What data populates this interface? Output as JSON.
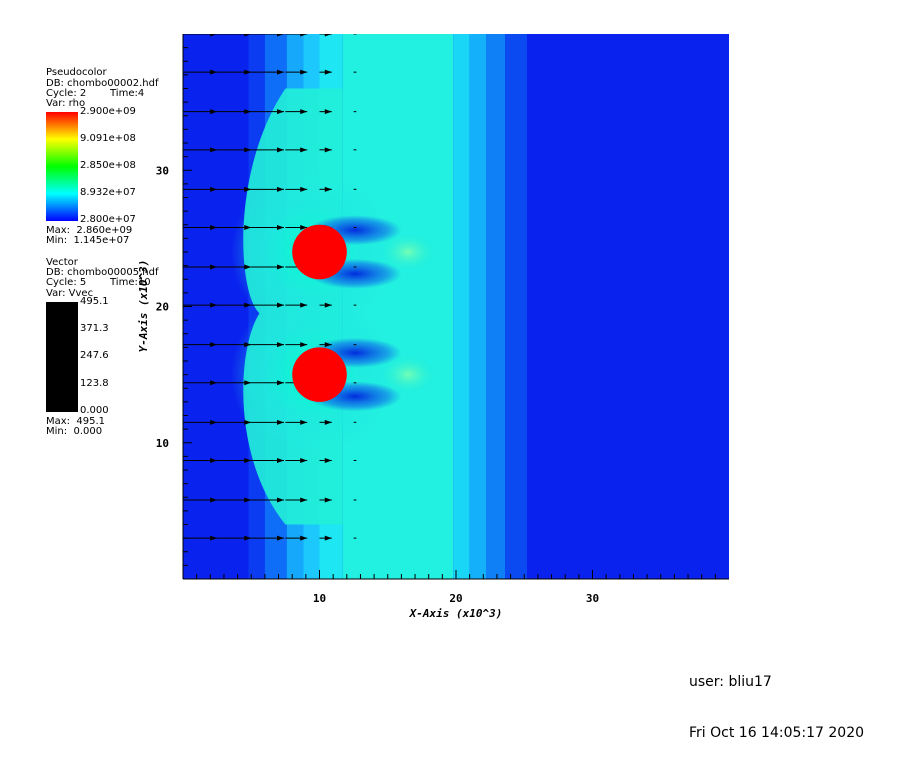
{
  "pseudocolor_legend": {
    "plot_type": "Pseudocolor",
    "db": "DB: chombo00002.hdf",
    "cycle": "Cycle: 2",
    "time": "Time:4",
    "var": "Var: rho",
    "ticks": [
      "2.900e+09",
      "9.091e+08",
      "2.850e+08",
      "8.932e+07",
      "2.800e+07"
    ],
    "max": "Max:  2.860e+09",
    "min": "Min:  1.145e+07",
    "colormap": [
      "#ff0000",
      "#ffff00",
      "#00ff00",
      "#00ffff",
      "#0000ff"
    ]
  },
  "vector_legend": {
    "plot_type": "Vector",
    "db": "DB: chombo00005.hdf",
    "cycle": "Cycle: 5",
    "time": "Time:10",
    "var": "Var: Vvec",
    "ticks": [
      "495.1",
      "371.3",
      "247.6",
      "123.8",
      "0.000"
    ],
    "max": "Max:  495.1",
    "min": "Min:  0.000",
    "bar_color": "#000000"
  },
  "chart_data": {
    "type": "heatmap",
    "xlabel": "X-Axis (x10^3)",
    "ylabel": "Y-Axis (x10^3)",
    "xlim": [
      0,
      40
    ],
    "ylim": [
      0,
      40
    ],
    "xticks": [
      10,
      20,
      30
    ],
    "yticks": [
      10,
      20,
      30
    ],
    "variable": "rho",
    "background_color": "#0a22ee",
    "obstacles": [
      {
        "cx": 10.0,
        "cy": 24.0,
        "r": 2.0,
        "color": "#ff0000"
      },
      {
        "cx": 10.0,
        "cy": 15.0,
        "r": 2.0,
        "color": "#ff0000"
      }
    ],
    "vector_rows_y": [
      3,
      5.8,
      8.7,
      11.5,
      14.4,
      17.2,
      20.1,
      22.9,
      25.8,
      28.6,
      31.5,
      34.3,
      37.2,
      40
    ],
    "vector_columns_x": [
      0,
      2.5,
      5,
      7.5,
      10,
      12.5
    ],
    "vector_column_lengths": [
      2.5,
      2.5,
      2.4,
      1.6,
      0.9,
      0.2
    ],
    "vector_direction": "+x"
  },
  "footer": {
    "user": "user: bliu17",
    "timestamp": "Fri Oct 16 14:05:17 2020"
  }
}
